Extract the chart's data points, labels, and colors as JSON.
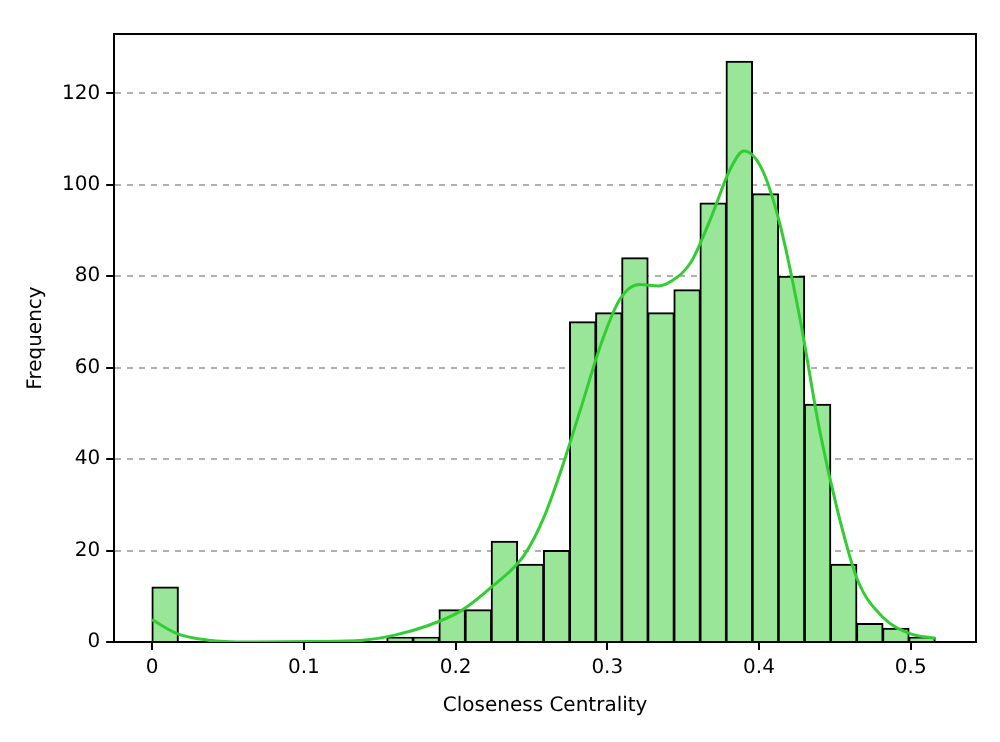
{
  "chart_data": {
    "type": "histogram",
    "xlabel": "Closeness Centrality",
    "ylabel": "Frequency",
    "bins": [
      0,
      0.0172,
      0.0344,
      0.0516,
      0.0688,
      0.086,
      0.1032,
      0.1204,
      0.1376,
      0.1548,
      0.172,
      0.1892,
      0.2064,
      0.2236,
      0.2408,
      0.258,
      0.2752,
      0.2924,
      0.3096,
      0.3268,
      0.344,
      0.3612,
      0.3784,
      0.3956,
      0.4128,
      0.43,
      0.4472,
      0.4644,
      0.4816,
      0.4988,
      0.516
    ],
    "values": [
      12,
      0,
      0,
      0,
      0,
      0,
      0,
      0,
      0,
      1,
      1,
      7,
      7,
      22,
      17,
      20,
      70,
      72,
      84,
      72,
      77,
      96,
      127,
      98,
      80,
      52,
      17,
      4,
      3,
      1
    ],
    "color": "#99e699",
    "series": [
      {
        "type": "line",
        "color": "#32cd32",
        "x": [
          0,
          0.016,
          0.037,
          0.063,
          0.105,
          0.139,
          0.16,
          0.181,
          0.203,
          0.224,
          0.245,
          0.258,
          0.27,
          0.283,
          0.296,
          0.308,
          0.321,
          0.334,
          0.342,
          0.355,
          0.368,
          0.381,
          0.39,
          0.402,
          0.414,
          0.427,
          0.44,
          0.453,
          0.465,
          0.482,
          0.499,
          0.516
        ],
        "values": [
          4.9,
          1.9,
          0.4,
          0,
          0.1,
          0.4,
          1.5,
          3.5,
          6.7,
          12.1,
          18.9,
          27.1,
          38,
          51.6,
          65.3,
          74.8,
          78.2,
          77.9,
          78.9,
          83,
          92.5,
          103.4,
          107.4,
          103.4,
          91.1,
          70.7,
          46.2,
          27.1,
          13.5,
          5.3,
          1.9,
          0.8
        ]
      }
    ],
    "xlim": [
      -0.025,
      0.543
    ],
    "xticks": [
      0,
      0.1,
      0.2,
      0.3,
      0.4,
      0.5
    ],
    "ylim": [
      0,
      133
    ],
    "yticks": [
      0,
      20,
      40,
      60,
      80,
      100,
      120
    ],
    "grid": "y",
    "legend": false
  }
}
